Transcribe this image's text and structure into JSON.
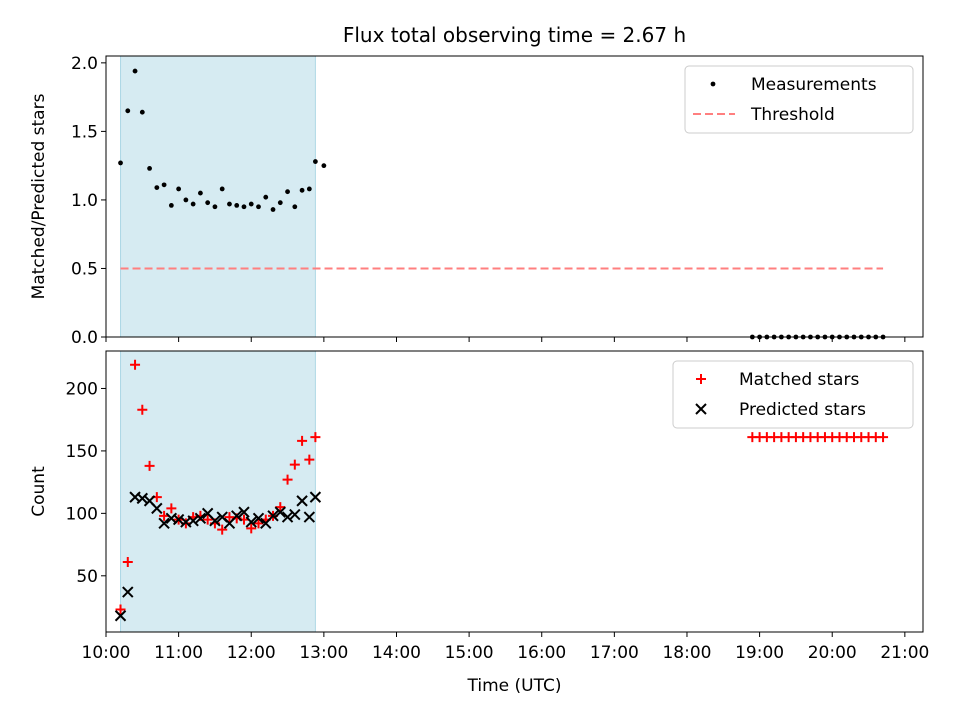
{
  "chart_data": [
    {
      "type": "scatter",
      "title": "Flux total observing time = 2.67 h",
      "ylabel": "Matched/Predicted stars",
      "xlim": [
        "10:00",
        "21:15"
      ],
      "ylim": [
        0,
        2.05
      ],
      "yticks": [
        "0.0",
        "0.5",
        "1.0",
        "1.5",
        "2.0"
      ],
      "shaded_span": {
        "start": "10:12",
        "end": "12:53",
        "color": "#add8e6"
      },
      "legend_position": "top-right",
      "series": [
        {
          "name": "Measurements",
          "marker": "dot",
          "color": "#000000",
          "x": [
            "10:12",
            "10:18",
            "10:24",
            "10:30",
            "10:36",
            "10:42",
            "10:48",
            "10:54",
            "11:00",
            "11:06",
            "11:12",
            "11:18",
            "11:24",
            "11:30",
            "11:36",
            "11:42",
            "11:48",
            "11:54",
            "12:00",
            "12:06",
            "12:12",
            "12:18",
            "12:24",
            "12:30",
            "12:36",
            "12:42",
            "12:48",
            "12:53",
            "13:00",
            "18:54",
            "19:00",
            "19:06",
            "19:12",
            "19:18",
            "19:24",
            "19:30",
            "19:36",
            "19:42",
            "19:48",
            "19:54",
            "20:00",
            "20:06",
            "20:12",
            "20:18",
            "20:24",
            "20:30",
            "20:36",
            "20:42"
          ],
          "y": [
            1.27,
            1.65,
            1.94,
            1.64,
            1.23,
            1.09,
            1.11,
            0.96,
            1.08,
            1.0,
            0.97,
            1.05,
            0.98,
            0.95,
            1.08,
            0.97,
            0.96,
            0.95,
            0.97,
            0.95,
            1.02,
            0.93,
            0.98,
            1.06,
            0.95,
            1.07,
            1.08,
            1.28,
            1.25,
            0,
            0,
            0,
            0,
            0,
            0,
            0,
            0,
            0,
            0,
            0,
            0,
            0,
            0,
            0,
            0,
            0,
            0,
            0
          ]
        },
        {
          "name": "Threshold",
          "marker": "dashed-line",
          "color": "#ff7f7f",
          "x": [
            "10:12",
            "20:42"
          ],
          "y": [
            0.5,
            0.5
          ]
        }
      ]
    },
    {
      "type": "scatter",
      "xlabel": "Time (UTC)",
      "ylabel": "Count",
      "xlim": [
        "10:00",
        "21:15"
      ],
      "ylim": [
        5,
        230
      ],
      "xticks": [
        "10:00",
        "11:00",
        "12:00",
        "13:00",
        "14:00",
        "15:00",
        "16:00",
        "17:00",
        "18:00",
        "19:00",
        "20:00",
        "21:00"
      ],
      "yticks": [
        "50",
        "100",
        "150",
        "200"
      ],
      "shaded_span": {
        "start": "10:12",
        "end": "12:53",
        "color": "#add8e6"
      },
      "legend_position": "top-right",
      "series": [
        {
          "name": "Matched stars",
          "marker": "plus",
          "color": "#ff0000",
          "x": [
            "10:12",
            "10:18",
            "10:24",
            "10:30",
            "10:36",
            "10:42",
            "10:48",
            "10:54",
            "11:00",
            "11:06",
            "11:12",
            "11:18",
            "11:24",
            "11:30",
            "11:36",
            "11:42",
            "11:48",
            "11:54",
            "12:00",
            "12:06",
            "12:12",
            "12:18",
            "12:24",
            "12:30",
            "12:36",
            "12:42",
            "12:48",
            "12:53",
            "18:54",
            "19:00",
            "19:06",
            "19:12",
            "19:18",
            "19:24",
            "19:30",
            "19:36",
            "19:42",
            "19:48",
            "19:54",
            "20:00",
            "20:06",
            "20:12",
            "20:18",
            "20:24",
            "20:30",
            "20:36",
            "20:42"
          ],
          "y": [
            23,
            61,
            219,
            183,
            138,
            113,
            98,
            104,
            95,
            92,
            97,
            98,
            95,
            92,
            87,
            97,
            96,
            95,
            88,
            92,
            95,
            98,
            105,
            127,
            139,
            158,
            143,
            161,
            161,
            161,
            161,
            161,
            161,
            161,
            161,
            161,
            161,
            161,
            161,
            161,
            161,
            161,
            161,
            161,
            161,
            161,
            161
          ]
        },
        {
          "name": "Predicted stars",
          "marker": "x",
          "color": "#000000",
          "x": [
            "10:12",
            "10:18",
            "10:24",
            "10:30",
            "10:36",
            "10:42",
            "10:48",
            "10:54",
            "11:00",
            "11:06",
            "11:12",
            "11:18",
            "11:24",
            "11:30",
            "11:36",
            "11:42",
            "11:48",
            "11:54",
            "12:00",
            "12:06",
            "12:12",
            "12:18",
            "12:24",
            "12:30",
            "12:36",
            "12:42",
            "12:48",
            "12:53"
          ],
          "y": [
            18,
            37,
            113,
            112,
            110,
            104,
            92,
            96,
            95,
            93,
            94,
            96,
            100,
            94,
            97,
            92,
            98,
            101,
            93,
            96,
            92,
            98,
            101,
            97,
            99,
            110,
            97,
            113
          ]
        }
      ]
    }
  ]
}
